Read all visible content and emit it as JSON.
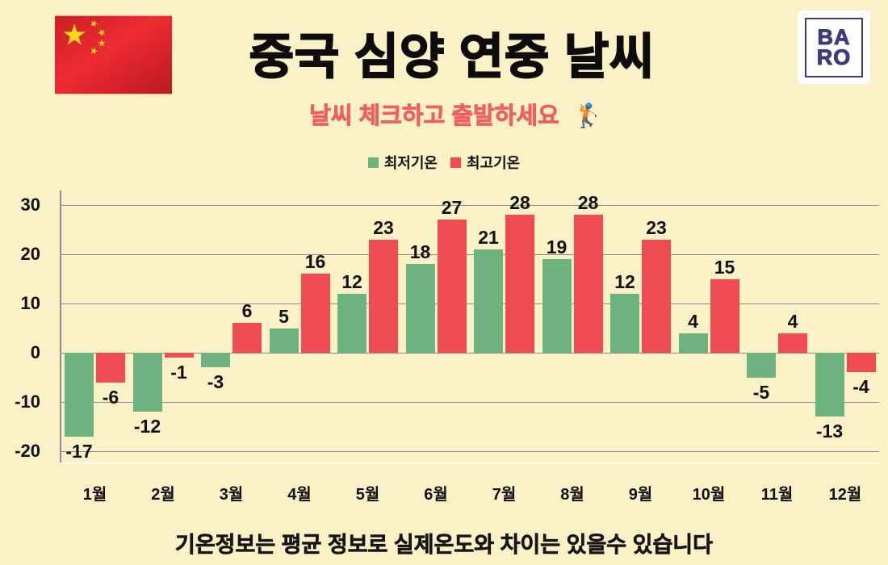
{
  "colors": {
    "background": "#FBF1C7",
    "min_temp": "#6DB27F",
    "max_temp": "#EF4B52",
    "subtitle_accent": "#F25E5E",
    "logo_navy": "#3C3C7C",
    "grid": "#8C8C8C",
    "text": "#111111"
  },
  "icons": {
    "flag": "china-flag",
    "logo": "baro-logo",
    "subtitle_emoji": "golfer-emoji"
  },
  "header": {
    "title": "중국 심양 연중 날씨",
    "subtitle": "날씨 체크하고 출발하세요",
    "subtitle_emoji": "🏌️",
    "logo_line1": "BA",
    "logo_line2": "RO"
  },
  "chart_data": {
    "type": "bar",
    "title": "중국 심양 연중 날씨",
    "categories": [
      "1월",
      "2월",
      "3월",
      "4월",
      "5월",
      "6월",
      "7월",
      "8월",
      "9월",
      "10월",
      "11월",
      "12월"
    ],
    "series": [
      {
        "name": "최저기온",
        "color": "#6DB27F",
        "values": [
          -17,
          -12,
          -3,
          5,
          12,
          18,
          21,
          19,
          12,
          4,
          -5,
          -13
        ]
      },
      {
        "name": "최고기온",
        "color": "#EF4B52",
        "values": [
          -6,
          -1,
          6,
          16,
          23,
          27,
          28,
          28,
          23,
          15,
          4,
          -4
        ]
      }
    ],
    "xlabel": "",
    "ylabel": "",
    "ylim": [
      -22.3,
      33
    ],
    "yticks": [
      30,
      20,
      10,
      0,
      -10,
      -20
    ],
    "grid": true,
    "legend_position": "top",
    "value_labels": true
  },
  "footer": {
    "note": "기온정보는 평균 정보로 실제온도와 차이는 있을수 있습니다"
  }
}
